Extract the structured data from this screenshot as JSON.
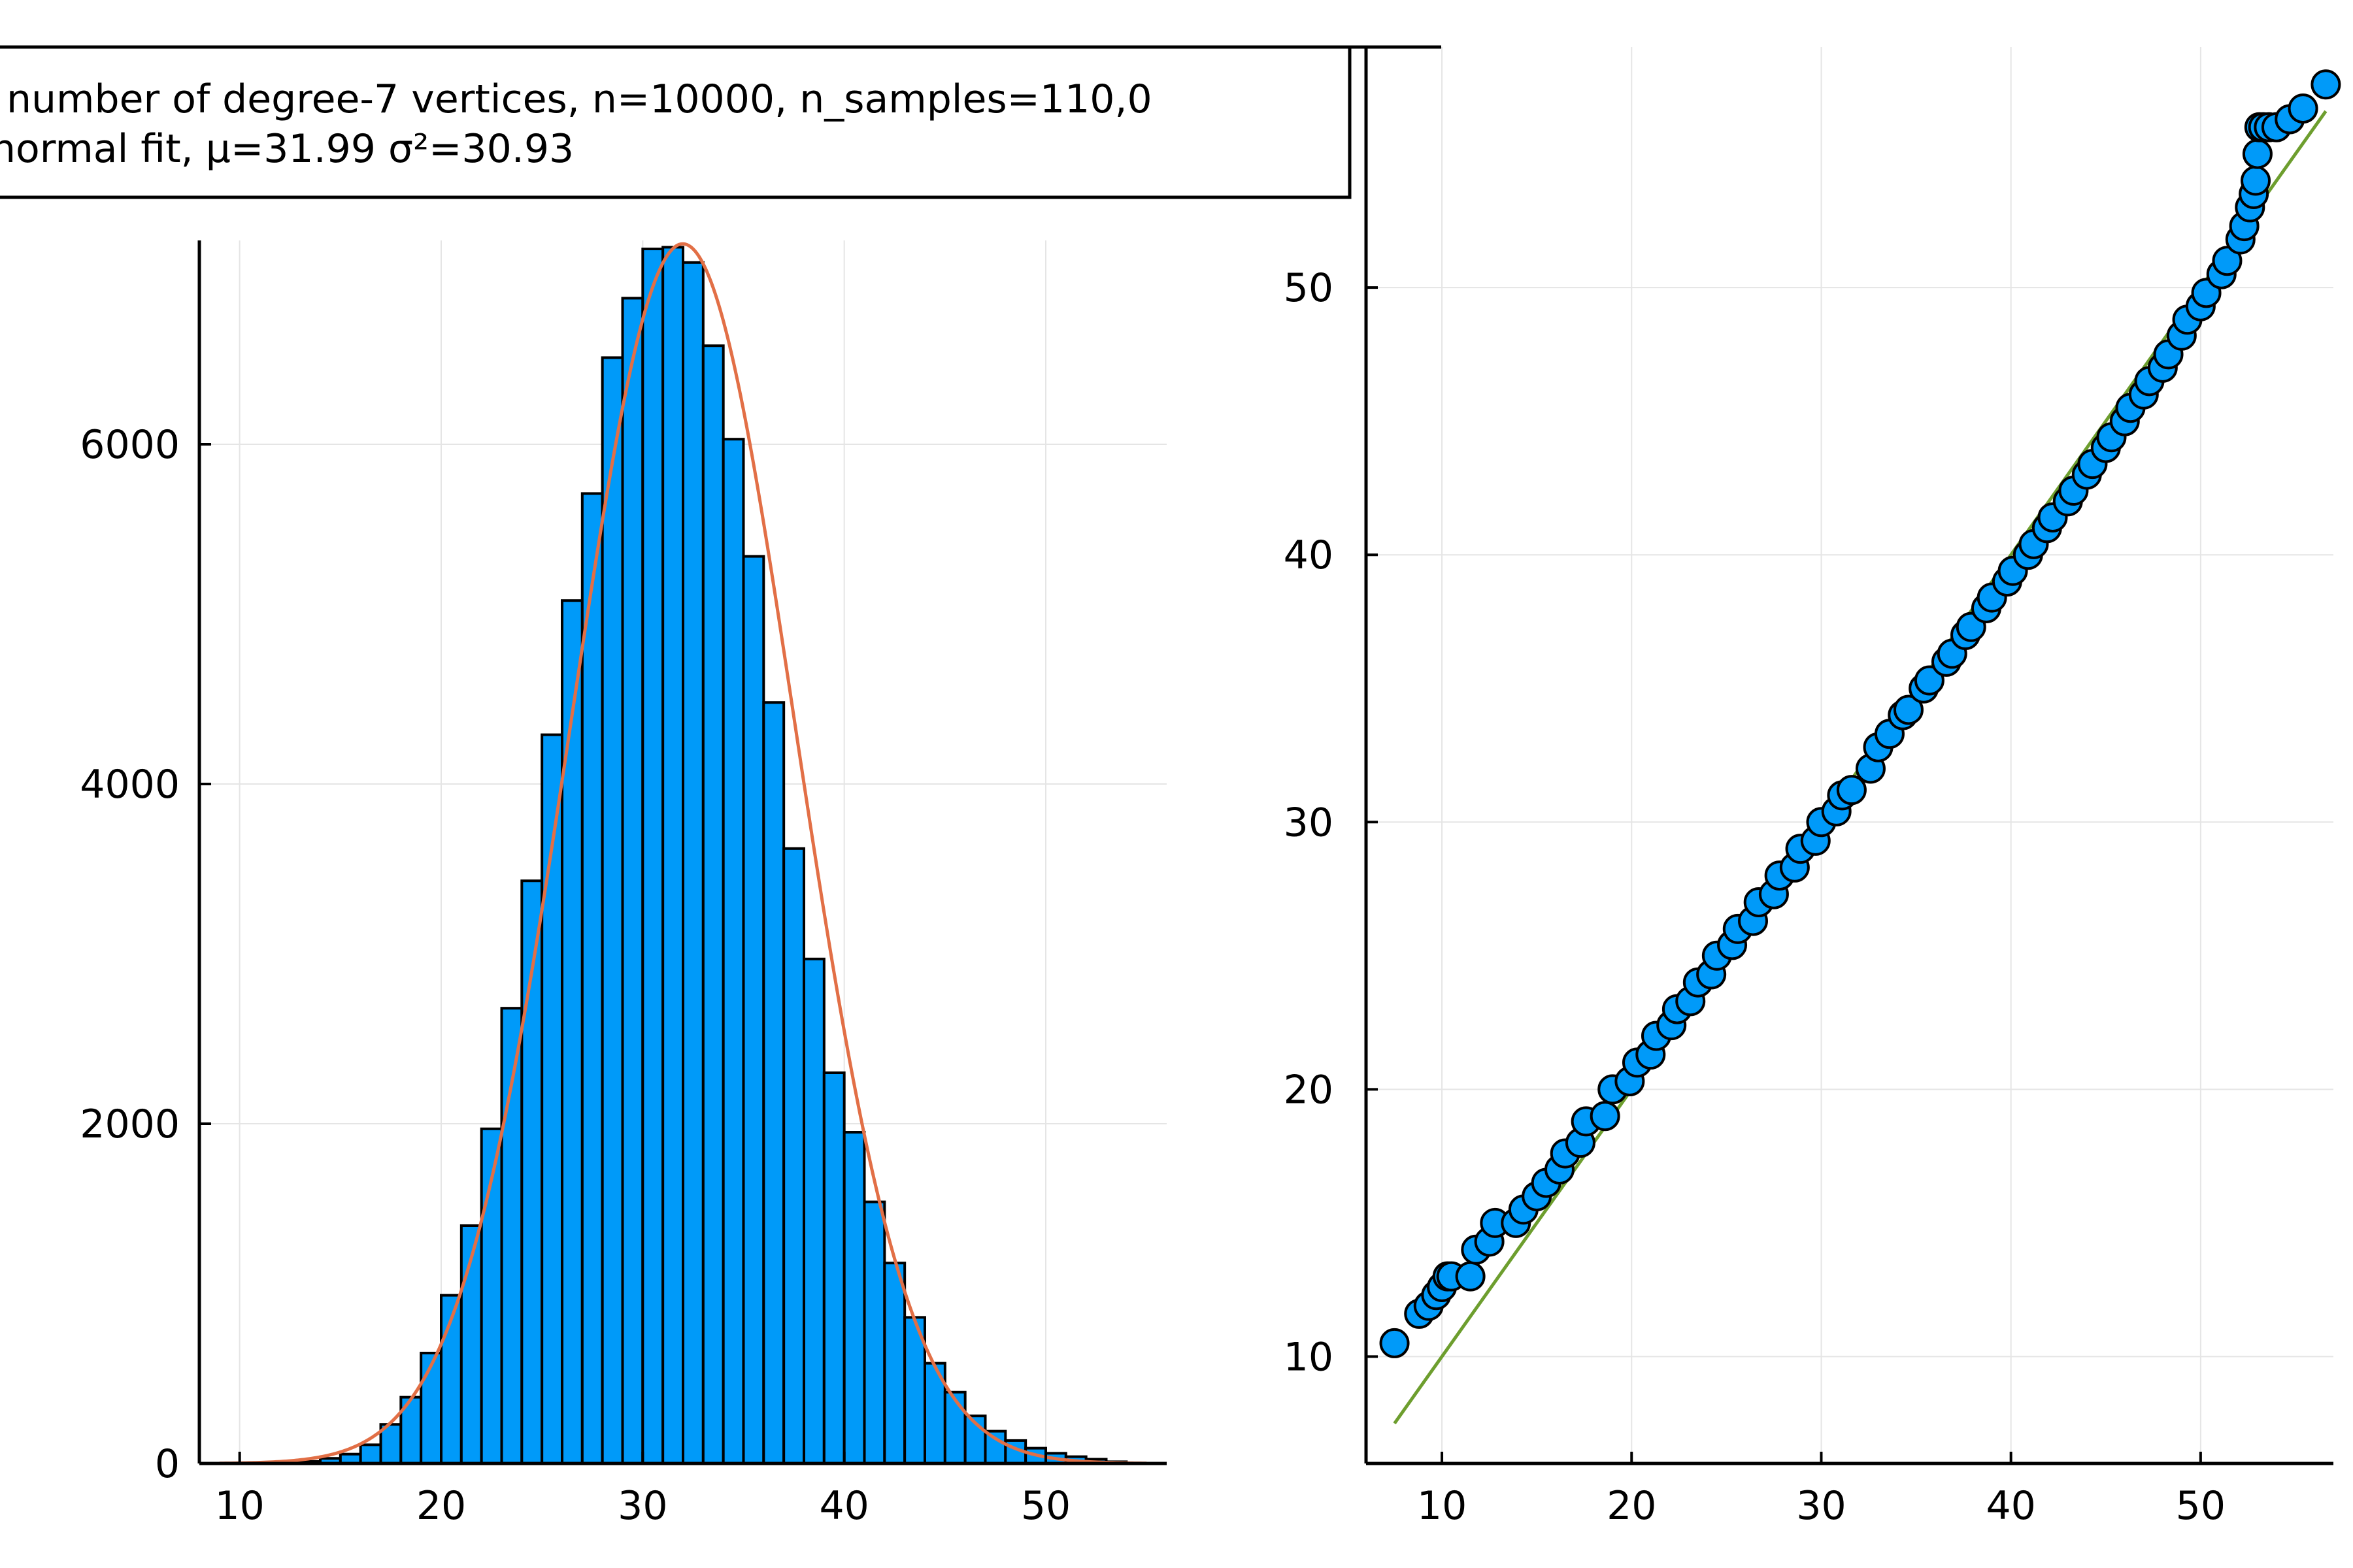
{
  "legend": {
    "entries": [
      "number of degree-7 vertices, n=10000, n_samples=110,0",
      "normal fit, μ=31.99 σ²=30.93"
    ]
  },
  "colors": {
    "bar_fill": "#009AF9",
    "bar_edge": "#000000",
    "fit_line": "#E26F46",
    "qq_line": "#6D9E2E",
    "qq_marker": "#009AF9",
    "qq_marker_edge": "#000000",
    "grid": "#E5E5E5"
  },
  "chart_data": [
    {
      "type": "bar",
      "subtype": "histogram",
      "bin_width": 1,
      "bin_starts": [
        12,
        13,
        14,
        15,
        16,
        17,
        18,
        19,
        20,
        21,
        22,
        23,
        24,
        25,
        26,
        27,
        28,
        29,
        30,
        31,
        32,
        33,
        34,
        35,
        36,
        37,
        38,
        39,
        40,
        41,
        42,
        43,
        44,
        45,
        46,
        47,
        48,
        49,
        50,
        51,
        52,
        53
      ],
      "values": [
        5,
        12,
        30,
        55,
        110,
        230,
        390,
        650,
        990,
        1400,
        1970,
        2680,
        3430,
        4290,
        5080,
        5710,
        6510,
        6860,
        7150,
        7160,
        7070,
        6580,
        6030,
        5340,
        4480,
        3620,
        2970,
        2300,
        1950,
        1540,
        1180,
        860,
        590,
        420,
        280,
        190,
        135,
        90,
        60,
        40,
        25,
        10
      ],
      "x_ticks": [
        10,
        20,
        30,
        40,
        50
      ],
      "y_ticks": [
        0,
        2000,
        4000,
        6000
      ],
      "xlim": [
        8,
        56
      ],
      "ylim": [
        0,
        7200
      ],
      "grid": true,
      "fit": {
        "mu": 31.99,
        "sigma2": 30.93,
        "peak": 7180,
        "x_range": [
          9,
          55
        ]
      }
    },
    {
      "type": "scatter",
      "subtype": "qq-plot",
      "x_ticks": [
        10,
        20,
        30,
        40,
        50
      ],
      "y_ticks": [
        10,
        20,
        30,
        40,
        50
      ],
      "xlim": [
        6,
        57
      ],
      "ylim": [
        6,
        59
      ],
      "grid": true,
      "reference_line": {
        "x": [
          7.5,
          56.6
        ],
        "y": [
          7.5,
          56.6
        ]
      },
      "x": [
        7.5,
        8.8,
        9.3,
        9.7,
        10.0,
        10.3,
        10.5,
        11.5,
        11.8,
        12.5,
        12.8,
        13.9,
        14.3,
        15.0,
        15.5,
        16.2,
        16.5,
        17.3,
        17.6,
        18.6,
        19.0,
        19.9,
        20.3,
        21.0,
        21.3,
        22.1,
        22.4,
        23.1,
        23.5,
        24.2,
        24.5,
        25.3,
        25.6,
        26.4,
        26.7,
        27.5,
        27.8,
        28.6,
        28.9,
        29.7,
        30.0,
        30.8,
        31.1,
        31.6,
        32.6,
        33.0,
        33.6,
        34.3,
        34.6,
        35.4,
        35.7,
        36.6,
        36.9,
        37.6,
        37.9,
        38.7,
        39.0,
        39.8,
        40.1,
        40.9,
        41.2,
        41.9,
        42.2,
        43.0,
        43.3,
        44.0,
        44.3,
        45.0,
        45.3,
        46.0,
        46.3,
        47.0,
        47.3,
        48.0,
        48.3,
        49.0,
        49.3,
        50.0,
        50.3,
        51.1,
        51.4,
        52.1,
        52.3,
        52.6,
        52.8,
        52.9,
        53.0,
        53.1,
        53.3,
        53.6,
        54.0,
        54.7,
        55.4,
        56.6
      ],
      "y": [
        10.5,
        11.6,
        11.9,
        12.3,
        12.6,
        13.0,
        13.0,
        13.0,
        14.0,
        14.3,
        15.0,
        15.0,
        15.5,
        16.0,
        16.5,
        17.0,
        17.6,
        18.0,
        18.8,
        19.0,
        20.0,
        20.3,
        21.0,
        21.3,
        22.0,
        22.4,
        23.0,
        23.3,
        24.0,
        24.3,
        25.0,
        25.4,
        26.0,
        26.3,
        27.0,
        27.3,
        28.0,
        28.3,
        29.0,
        29.3,
        30.0,
        30.4,
        31.0,
        31.2,
        32.0,
        32.8,
        33.3,
        34.0,
        34.2,
        35.0,
        35.3,
        36.0,
        36.3,
        37.0,
        37.3,
        38.0,
        38.4,
        39.0,
        39.4,
        40.0,
        40.4,
        41.0,
        41.4,
        42.0,
        42.4,
        43.0,
        43.4,
        44.0,
        44.4,
        45.0,
        45.5,
        46.0,
        46.5,
        47.0,
        47.5,
        48.2,
        48.8,
        49.3,
        49.8,
        50.5,
        51.0,
        51.8,
        52.3,
        53.0,
        53.5,
        54.0,
        55.0,
        56.0,
        56.0,
        56.0,
        56.0,
        56.3,
        56.7,
        57.6
      ]
    }
  ]
}
